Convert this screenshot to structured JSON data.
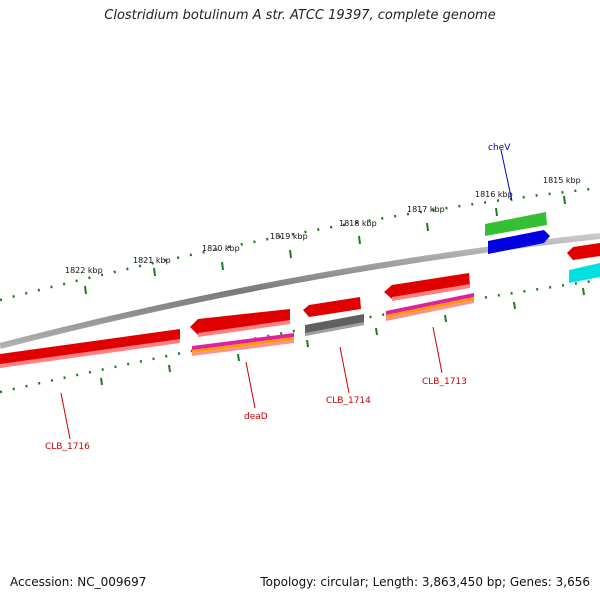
{
  "title": "Clostridium botulinum A str. ATCC 19397, complete genome",
  "accession_text": "Accession: NC_009697",
  "stats_text": "Topology: circular; Length: 3,863,450 bp; Genes: 3,656",
  "colors": {
    "backbone": "#808080",
    "tick": "#1e7a1e",
    "label_red": "#cc0000",
    "label_blue": "#0000cc",
    "label_black": "#111111"
  },
  "scale_labels": [
    "1822 kbp",
    "1821 kbp",
    "1820 kbp",
    "1819 kbp",
    "1818 kbp",
    "1817 kbp",
    "1816 kbp",
    "1815 kbp"
  ],
  "gene_labels": [
    {
      "text": "cheV",
      "color": "#0000cc"
    },
    {
      "text": "CLB_1713",
      "color": "#cc0000"
    },
    {
      "text": "CLB_1714",
      "color": "#cc0000"
    },
    {
      "text": "deaD",
      "color": "#cc0000"
    },
    {
      "text": "CLB_1716",
      "color": "#cc0000"
    }
  ],
  "feature_colors": [
    "#e00000",
    "#e00000",
    "#e00000",
    "#e00000",
    "#e00000",
    "#606060",
    "#34c034",
    "#0000e0",
    "#00e0e0"
  ]
}
